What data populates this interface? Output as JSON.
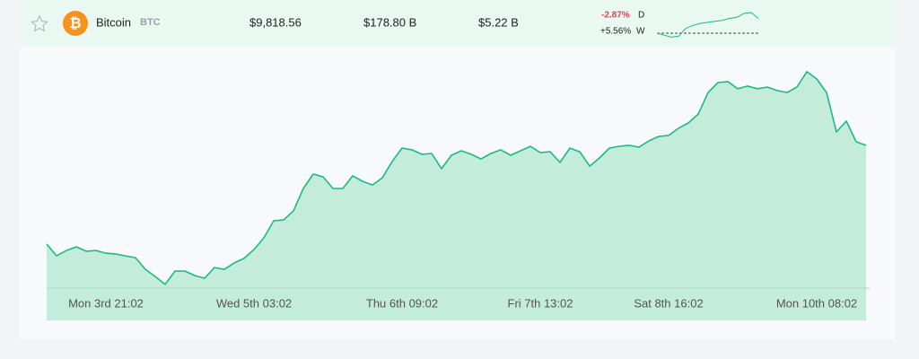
{
  "row": {
    "name": "Bitcoin",
    "symbol": "BTC",
    "price": "$9,818.56",
    "market_cap": "$178.80 B",
    "volume": "$5.22 B",
    "change_day": "-2.87%",
    "day_label": "D",
    "change_week": "+5.56%",
    "week_label": "W",
    "sparkline": [
      0,
      -2,
      -4,
      -3,
      5,
      8,
      10,
      11,
      12,
      13,
      15,
      16,
      20,
      21,
      15
    ]
  },
  "chart_data": {
    "type": "area",
    "color": "#1db981",
    "fill": "#c4ecdb",
    "categories": [
      null,
      null,
      null,
      null,
      null,
      null,
      "Mon 3rd 21:02",
      null,
      null,
      null,
      null,
      null,
      null,
      null,
      null,
      null,
      null,
      null,
      null,
      null,
      null,
      "Wed 5th 03:02",
      null,
      null,
      null,
      null,
      null,
      null,
      null,
      null,
      null,
      null,
      null,
      null,
      null,
      null,
      "Thu 6th 09:02",
      null,
      null,
      null,
      null,
      null,
      null,
      null,
      null,
      null,
      null,
      null,
      null,
      null,
      "Fri 7th 13:02",
      null,
      null,
      null,
      null,
      null,
      null,
      null,
      null,
      null,
      null,
      null,
      null,
      "Sat 8th 16:02",
      null,
      null,
      null,
      null,
      null,
      null,
      null,
      null,
      null,
      null,
      null,
      null,
      null,
      null,
      "Mon 10th 08:02",
      null,
      null,
      null,
      null,
      null
    ],
    "values": [
      9301,
      9240,
      9268,
      9287,
      9264,
      9268,
      9254,
      9250,
      9240,
      9231,
      9171,
      9134,
      9093,
      9162,
      9162,
      9139,
      9125,
      9180,
      9171,
      9204,
      9227,
      9273,
      9333,
      9421,
      9425,
      9472,
      9587,
      9661,
      9647,
      9587,
      9587,
      9652,
      9624,
      9605,
      9642,
      9726,
      9795,
      9786,
      9763,
      9767,
      9689,
      9758,
      9781,
      9763,
      9739,
      9767,
      9786,
      9758,
      9781,
      9804,
      9772,
      9776,
      9721,
      9795,
      9776,
      9702,
      9744,
      9795,
      9804,
      9809,
      9800,
      9832,
      9855,
      9860,
      9897,
      9924,
      9970,
      10081,
      10132,
      10137,
      10100,
      10114,
      10100,
      10109,
      10091,
      10081,
      10109,
      10188,
      10151,
      10081,
      9878,
      9934,
      9827,
      9809
    ],
    "ylim": [
      8908,
      10303
    ]
  }
}
